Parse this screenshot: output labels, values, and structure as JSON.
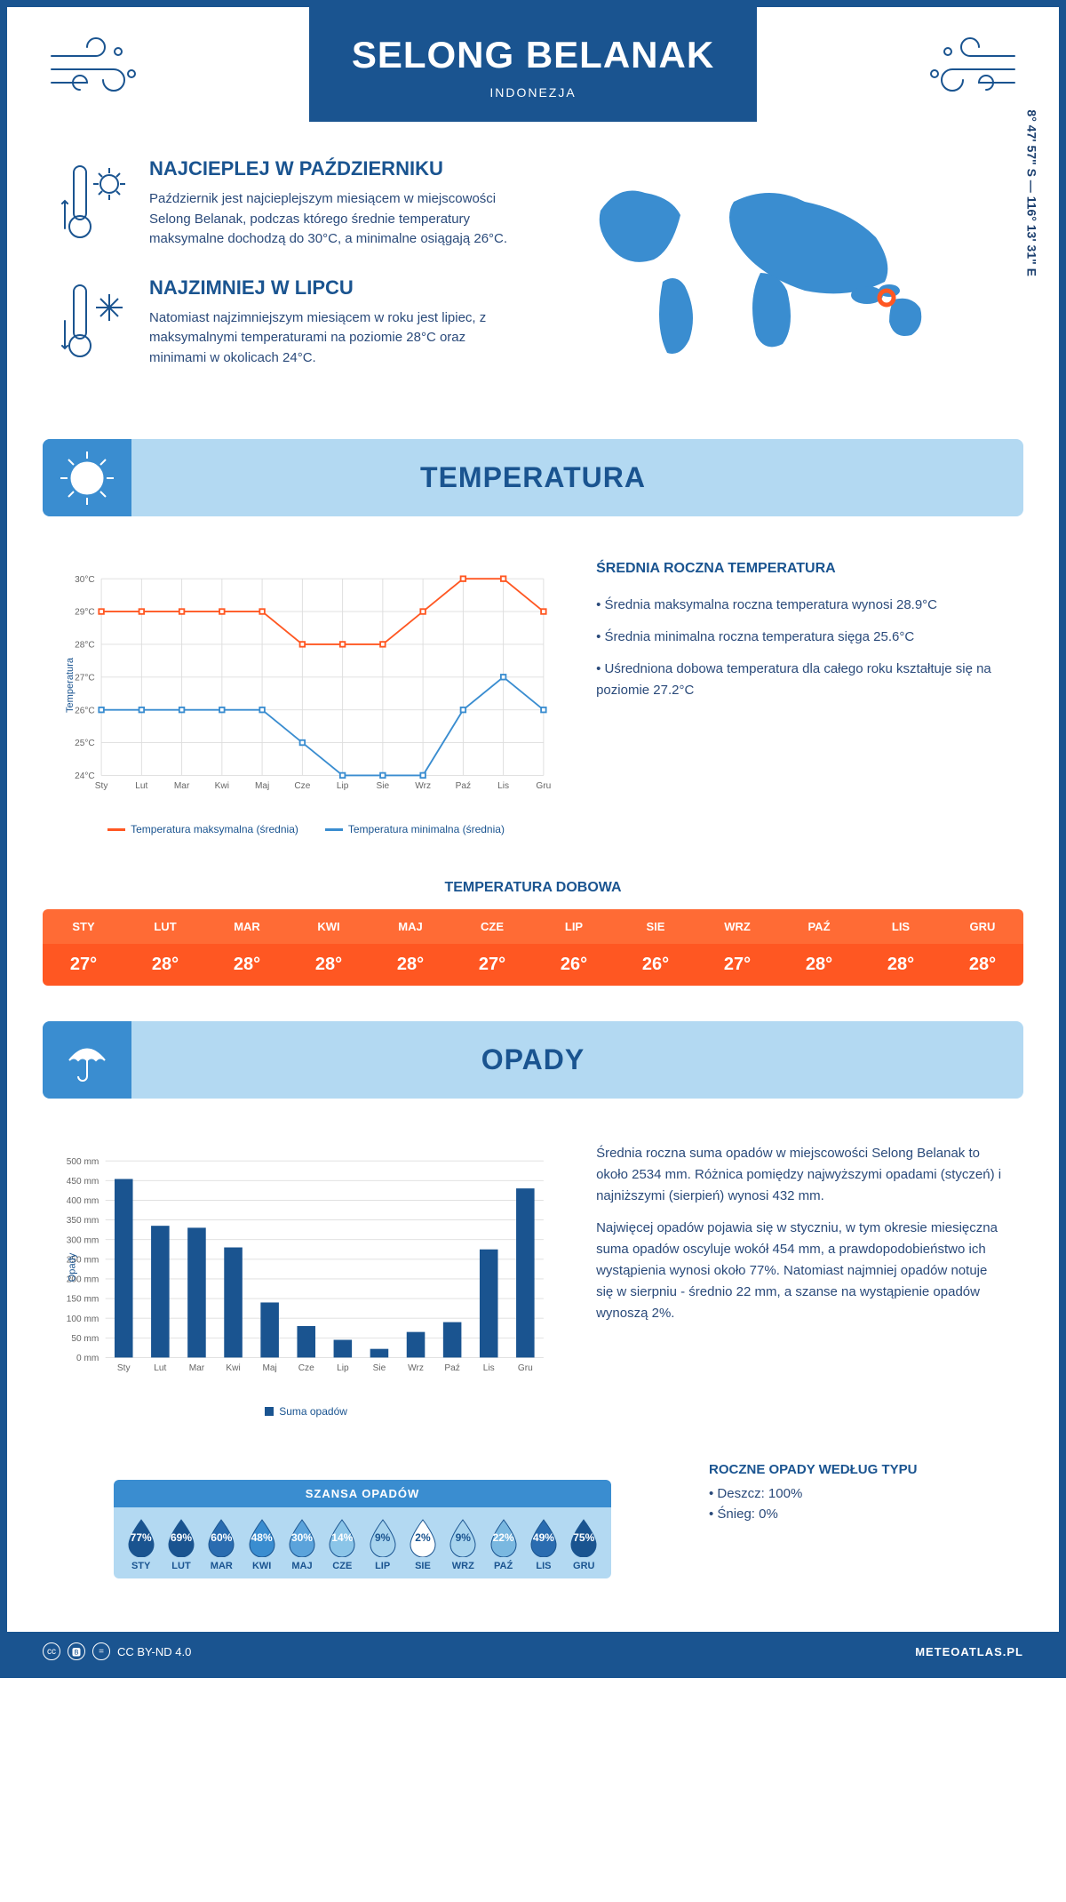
{
  "header": {
    "title": "SELONG BELANAK",
    "subtitle": "INDONEZJA",
    "coords": "8° 47' 57\" S — 116° 13' 31\" E"
  },
  "intro": {
    "warm": {
      "title": "NAJCIEPLEJ W PAŹDZIERNIKU",
      "text": "Październik jest najcieplejszym miesiącem w miejscowości Selong Belanak, podczas którego średnie temperatury maksymalne dochodzą do 30°C, a minimalne osiągają 26°C."
    },
    "cold": {
      "title": "NAJZIMNIEJ W LIPCU",
      "text": "Natomiast najzimniejszym miesiącem w roku jest lipiec, z maksymalnymi temperaturami na poziomie 28°C oraz minimami w okolicach 24°C."
    }
  },
  "temp_section": {
    "banner": "TEMPERATURA",
    "chart": {
      "type": "line",
      "months": [
        "Sty",
        "Lut",
        "Mar",
        "Kwi",
        "Maj",
        "Cze",
        "Lip",
        "Sie",
        "Wrz",
        "Paź",
        "Lis",
        "Gru"
      ],
      "series_max": [
        29,
        29,
        29,
        29,
        29,
        28,
        28,
        28,
        29,
        30,
        30,
        29
      ],
      "series_min": [
        26,
        26,
        26,
        26,
        26,
        25,
        24,
        24,
        24,
        26,
        27,
        26
      ],
      "max_color": "#ff5722",
      "min_color": "#3a8dd0",
      "ylim": [
        24,
        30
      ],
      "ytick_step": 1,
      "ylabel": "Temperatura",
      "grid_color": "#dddddd",
      "background": "#ffffff",
      "line_width": 2,
      "marker": "square",
      "legend_max": "Temperatura maksymalna (średnia)",
      "legend_min": "Temperatura minimalna (średnia)"
    },
    "info": {
      "title": "ŚREDNIA ROCZNA TEMPERATURA",
      "b1": "• Średnia maksymalna roczna temperatura wynosi 28.9°C",
      "b2": "• Średnia minimalna roczna temperatura sięga 25.6°C",
      "b3": "• Uśredniona dobowa temperatura dla całego roku kształtuje się na poziomie 27.2°C"
    },
    "daily": {
      "title": "TEMPERATURA DOBOWA",
      "months": [
        "STY",
        "LUT",
        "MAR",
        "KWI",
        "MAJ",
        "CZE",
        "LIP",
        "SIE",
        "WRZ",
        "PAŹ",
        "LIS",
        "GRU"
      ],
      "values": [
        "27°",
        "28°",
        "28°",
        "28°",
        "28°",
        "27°",
        "26°",
        "26°",
        "27°",
        "28°",
        "28°",
        "28°"
      ],
      "header_bg": "#ff6b35",
      "values_bg": "#ff5722"
    }
  },
  "precip_section": {
    "banner": "OPADY",
    "chart": {
      "type": "bar",
      "months": [
        "Sty",
        "Lut",
        "Mar",
        "Kwi",
        "Maj",
        "Cze",
        "Lip",
        "Sie",
        "Wrz",
        "Paź",
        "Lis",
        "Gru"
      ],
      "values": [
        454,
        335,
        330,
        280,
        140,
        80,
        45,
        22,
        65,
        90,
        275,
        430
      ],
      "bar_color": "#1a5490",
      "ylim": [
        0,
        500
      ],
      "ytick_step": 50,
      "ylabel": "Opady",
      "grid_color": "#dddddd",
      "legend": "Suma opadów",
      "bar_width": 0.5
    },
    "info": {
      "p1": "Średnia roczna suma opadów w miejscowości Selong Belanak to około 2534 mm. Różnica pomiędzy najwyższymi opadami (styczeń) i najniższymi (sierpień) wynosi 432 mm.",
      "p2": "Najwięcej opadów pojawia się w styczniu, w tym okresie miesięczna suma opadów oscyluje wokół 454 mm, a prawdopodobieństwo ich wystąpienia wynosi około 77%. Natomiast najmniej opadów notuje się w sierpniu - średnio 22 mm, a szanse na wystąpienie opadów wynoszą 2%."
    },
    "chance": {
      "title": "SZANSA OPADÓW",
      "months": [
        "STY",
        "LUT",
        "MAR",
        "KWI",
        "MAJ",
        "CZE",
        "LIP",
        "SIE",
        "WRZ",
        "PAŹ",
        "LIS",
        "GRU"
      ],
      "pct": [
        "77%",
        "69%",
        "60%",
        "48%",
        "30%",
        "14%",
        "9%",
        "2%",
        "9%",
        "22%",
        "49%",
        "75%"
      ],
      "drop_colors": [
        "#1a5490",
        "#1a5490",
        "#2a6cb0",
        "#3a8dd0",
        "#5ba3db",
        "#8bc5e8",
        "#a8d4ee",
        "#ffffff",
        "#a8d4ee",
        "#7ab8e0",
        "#2a6cb0",
        "#1a5490"
      ],
      "pct_text_colors": [
        "#fff",
        "#fff",
        "#fff",
        "#fff",
        "#fff",
        "#fff",
        "#1a5490",
        "#1a5490",
        "#1a5490",
        "#fff",
        "#fff",
        "#fff"
      ]
    },
    "type": {
      "title": "ROCZNE OPADY WEDŁUG TYPU",
      "b1": "• Deszcz: 100%",
      "b2": "• Śnieg: 0%"
    }
  },
  "footer": {
    "license": "CC BY-ND 4.0",
    "brand": "METEOATLAS.PL"
  }
}
